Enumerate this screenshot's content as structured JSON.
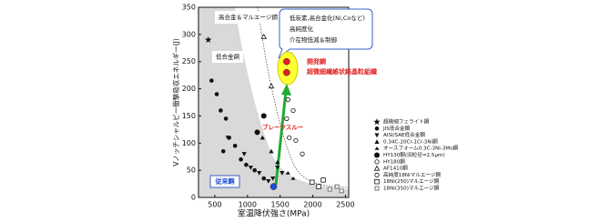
{
  "chart_data": {
    "type": "scatter",
    "x_label": "室温降伏強さ(MPa)",
    "y_label": "Vノッチシャルピー衝撃吸収エネルギー(J)",
    "xlim": [
      250,
      2550
    ],
    "xticks": [
      500,
      1000,
      1500,
      2000,
      2500
    ],
    "ylim": [
      0,
      350
    ],
    "yticks": [
      0,
      50,
      100,
      150,
      200,
      250,
      300,
      350
    ],
    "series": [
      {
        "name": "超微細フェライト鋼",
        "marker": "star",
        "color": "#111111",
        "x": [
          400
        ],
        "values": [
          290
        ]
      },
      {
        "name": "JIS低合金鋼",
        "marker": "circle",
        "color": "#111111",
        "x": [
          450,
          530,
          590,
          670,
          720,
          810,
          900,
          980,
          630,
          1110,
          1250
        ],
        "values": [
          215,
          190,
          160,
          145,
          110,
          95,
          70,
          60,
          85,
          50,
          35
        ]
      },
      {
        "name": "AISI/SAE低合金鋼",
        "marker": "tri-down",
        "color": "#111111",
        "x": [
          700,
          950,
          1050,
          1180,
          1320,
          1390,
          1460,
          1530
        ],
        "values": [
          110,
          80,
          55,
          45,
          30,
          35,
          55,
          45
        ]
      },
      {
        "name": "0.34C-20Cr-1Cr-3Ni鋼",
        "marker": "tri-up",
        "color": "#111111",
        "x": [
          1230,
          1365,
          1460
        ],
        "values": [
          110,
          85,
          65
        ]
      },
      {
        "name": "オースフォーム0.3C-3Ni-3Mo鋼",
        "marker": "tri-up-small",
        "color": "#111111",
        "x": [
          1620,
          1700
        ],
        "values": [
          45,
          35
        ]
      },
      {
        "name": "HY130鋼(旧粒径=2.5μm)",
        "marker": "circle-big",
        "color": "#111111",
        "x": [
          1150,
          1250
        ],
        "values": [
          120,
          150
        ]
      },
      {
        "name": "HY180鋼",
        "marker": "open-circle",
        "color": "#111111",
        "x": [
          1620,
          1700,
          1640
        ],
        "values": [
          180,
          160,
          110
        ]
      },
      {
        "name": "AF1410鋼",
        "marker": "open-tri",
        "color": "#111111",
        "x": [
          1250,
          1365
        ],
        "values": [
          296,
          205
        ]
      },
      {
        "name": "高純度18Niマルエージ鋼",
        "marker": "open-circle",
        "color": "#111111",
        "x": [
          1600,
          1740,
          1840
        ],
        "values": [
          145,
          105,
          80
        ]
      },
      {
        "name": "18Ni(250)マルエージ鋼",
        "marker": "open-square",
        "color": "#111111",
        "x": [
          1990,
          2090,
          2160
        ],
        "values": [
          28,
          20,
          32
        ]
      },
      {
        "name": "18Ni(350)マルエージ鋼",
        "marker": "open-square-small",
        "color": "#111111",
        "x": [
          2260,
          2370,
          2440
        ],
        "values": [
          15,
          20,
          12
        ]
      }
    ],
    "highlights": [
      {
        "label": [
          "開発鋼",
          "超微細繊維状結晶粒組織"
        ],
        "color": "#e02020",
        "x": [
          1600,
          1600
        ],
        "values": [
          250,
          230
        ]
      },
      {
        "label": [
          "従来鋼"
        ],
        "color": "#1f4fd1",
        "x": [
          1400
        ],
        "values": [
          20
        ]
      }
    ],
    "annotations": [
      "高合金＆マルエージ鋼",
      "低合金鋼",
      "ブレークスルー"
    ],
    "note_box": [
      "低炭素,高合金化(Ni,Coなど)",
      "高純度化",
      "介在物低減＆制御"
    ]
  }
}
